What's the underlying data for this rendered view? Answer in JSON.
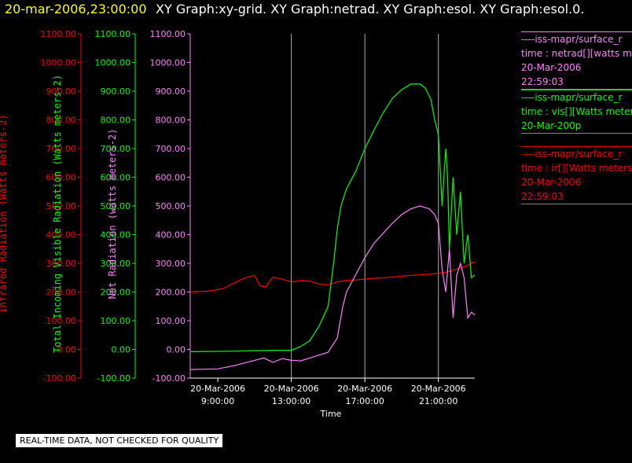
{
  "header": {
    "date_label": "20-mar-2006,23:00:00",
    "graph_titles": "XY Graph:xy-grid.  XY Graph:netrad.  XY Graph:esol.  XY Graph:esol.0."
  },
  "colors": {
    "infrared": "#ff0000",
    "visible": "#00ff00",
    "netrad": "#ff80ff",
    "grid": "#aaaaaa",
    "background": "#000000"
  },
  "legend": [
    {
      "line1": "----iss-mapr/surface_r",
      "line2": "time : netrad[][watts m",
      "line3": "20-Mar-2006",
      "line4": "22:59:03",
      "color": "#ff80ff"
    },
    {
      "line1": "----iss-mapr/surface_r",
      "line2": "time : vis[][Watts meter",
      "line3": "20-Mar-200p",
      "line4": "",
      "color": "#00ff00"
    },
    {
      "line1": "----iss-mapr/surface_r",
      "line2": "time : ir[][Watts meters",
      "line3": "20-Mar-2006",
      "line4": "22:59:03",
      "color": "#ff0000"
    }
  ],
  "quality_note": "REAL-TIME DATA, NOT CHECKED FOR QUALITY",
  "chart_data": {
    "type": "line",
    "xlabel": "Time",
    "x_ticks": [
      {
        "date": "20-Mar-2006",
        "time": "9:00:00",
        "hour": 9
      },
      {
        "date": "20-Mar-2006",
        "time": "13:00:00",
        "hour": 13
      },
      {
        "date": "20-Mar-2006",
        "time": "17:00:00",
        "hour": 17
      },
      {
        "date": "20-Mar-2006",
        "time": "21:00:00",
        "hour": 21
      }
    ],
    "xlim_hours": [
      7.5,
      22.98
    ],
    "grid_vertical_hours": [
      13,
      17,
      21
    ],
    "axes": [
      {
        "id": "ir",
        "label": "Infrared Radiation (Watts meters-2)",
        "color": "#ff0000",
        "ylim": [
          -100,
          1100
        ],
        "ticks": [
          "-100.00",
          "0.00",
          "100.00",
          "200.00",
          "300.00",
          "400.00",
          "500.00",
          "600.00",
          "700.00",
          "800.00",
          "900.00",
          "1000.00",
          "1100.00"
        ]
      },
      {
        "id": "vis",
        "label": "Total Incoming Visible Radiation (Watts meters-2)",
        "color": "#00ff00",
        "ylim": [
          -100,
          1100
        ],
        "ticks": [
          "-100.00",
          "0.00",
          "100.00",
          "200.00",
          "300.00",
          "400.00",
          "500.00",
          "600.00",
          "700.00",
          "800.00",
          "900.00",
          "1000.00",
          "1100.00"
        ]
      },
      {
        "id": "net",
        "label": "Net Radiation (watts meters-2)",
        "color": "#ff80ff",
        "ylim": [
          -100,
          1100
        ],
        "ticks": [
          "-100.00",
          "0.00",
          "100.00",
          "200.00",
          "300.00",
          "400.00",
          "500.00",
          "600.00",
          "700.00",
          "800.00",
          "900.00",
          "1000.00",
          "1100.00"
        ]
      }
    ],
    "series": [
      {
        "axis": "ir",
        "color": "#ff0000",
        "x": [
          7.5,
          8.5,
          9.3,
          10.0,
          10.5,
          11.0,
          11.3,
          11.6,
          12.0,
          12.5,
          13.0,
          13.5,
          14.0,
          14.5,
          15.0,
          15.5,
          16.0,
          16.5,
          17.0,
          17.5,
          18.0,
          18.5,
          19.0,
          19.5,
          20.0,
          20.5,
          21.0,
          21.5,
          22.0,
          22.5,
          22.98
        ],
        "y": [
          200,
          203,
          212,
          235,
          250,
          258,
          222,
          218,
          252,
          245,
          235,
          240,
          238,
          228,
          225,
          235,
          240,
          242,
          245,
          248,
          250,
          252,
          255,
          258,
          260,
          262,
          265,
          270,
          280,
          290,
          305
        ]
      },
      {
        "axis": "vis",
        "color": "#00ff00",
        "x": [
          7.5,
          10.0,
          12.0,
          13.0,
          13.5,
          14.0,
          14.5,
          15.0,
          15.3,
          15.5,
          15.7,
          16.0,
          16.5,
          17.0,
          17.5,
          18.0,
          18.5,
          19.0,
          19.5,
          20.0,
          20.3,
          20.6,
          20.8,
          21.0,
          21.2,
          21.4,
          21.5,
          21.6,
          21.8,
          22.0,
          22.2,
          22.4,
          22.6,
          22.8,
          22.98
        ],
        "y": [
          -8,
          -6,
          -3,
          -3,
          10,
          30,
          80,
          150,
          300,
          420,
          500,
          560,
          620,
          700,
          765,
          825,
          875,
          905,
          925,
          925,
          910,
          870,
          800,
          750,
          500,
          700,
          600,
          350,
          600,
          400,
          550,
          300,
          400,
          250,
          260
        ]
      },
      {
        "axis": "net",
        "color": "#ff80ff",
        "x": [
          7.5,
          9.0,
          10.0,
          11.0,
          11.5,
          12.0,
          12.5,
          13.0,
          13.5,
          14.0,
          14.5,
          15.0,
          15.5,
          15.8,
          16.0,
          16.5,
          17.0,
          17.5,
          18.0,
          18.5,
          19.0,
          19.5,
          20.0,
          20.5,
          20.8,
          21.0,
          21.2,
          21.4,
          21.6,
          21.8,
          22.0,
          22.2,
          22.4,
          22.6,
          22.8,
          22.98
        ],
        "y": [
          -70,
          -68,
          -55,
          -38,
          -30,
          -45,
          -32,
          -38,
          -40,
          -30,
          -20,
          -10,
          40,
          150,
          200,
          260,
          320,
          370,
          405,
          440,
          470,
          490,
          500,
          490,
          470,
          440,
          280,
          200,
          350,
          110,
          260,
          300,
          250,
          110,
          130,
          120
        ]
      }
    ]
  }
}
